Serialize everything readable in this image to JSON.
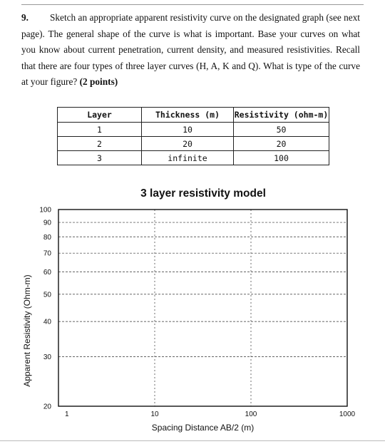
{
  "question": {
    "number": "9.",
    "text": "Sketch an appropriate apparent resistivity curve on the designated graph (see next page). The general shape of the curve is what is important. Base your curves on what you know about current penetration, current density, and measured resistivities. Recall that there are four types of three layer curves (H, A, K and Q). What is type of the curve at your figure?",
    "points": "(2 points)"
  },
  "layer_table": {
    "headers": [
      "Layer",
      "Thickness (m)",
      "Resistivity (ohm-m)"
    ],
    "rows": [
      [
        "1",
        "10",
        "50"
      ],
      [
        "2",
        "20",
        "20"
      ],
      [
        "3",
        "infinite",
        "100"
      ]
    ]
  },
  "chart_data": {
    "type": "line",
    "title": "3 layer resistivity model",
    "xlabel": "Spacing Distance AB/2 (m)",
    "ylabel": "Apparent Resistivity (Ohm-m)",
    "x_scale": "log",
    "y_scale": "log",
    "xlim": [
      1,
      1000
    ],
    "ylim": [
      20,
      100
    ],
    "x_ticks": [
      1,
      10,
      100,
      1000
    ],
    "y_ticks": [
      20,
      30,
      40,
      50,
      60,
      70,
      80,
      90,
      100
    ],
    "grid": true,
    "series": []
  }
}
